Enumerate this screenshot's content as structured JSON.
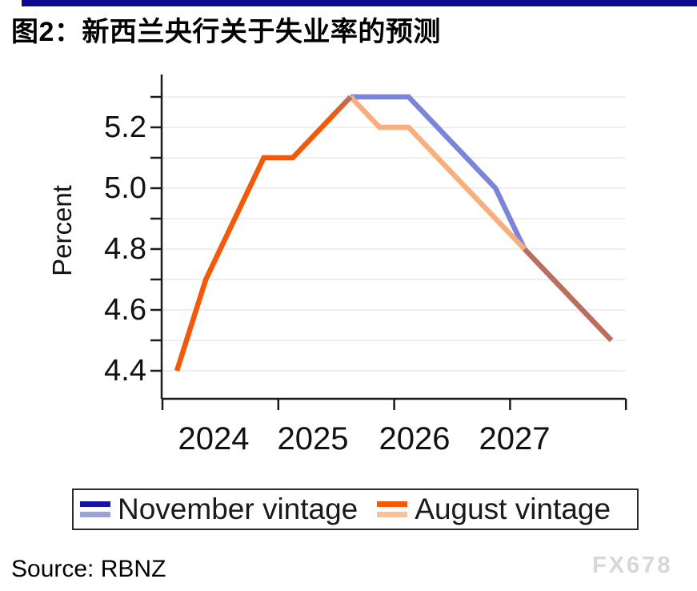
{
  "header": {
    "title": "图2：新西兰央行关于失业率的预测",
    "accent_bar_color": "#0B0B8F"
  },
  "chart_data": {
    "type": "line",
    "title": "图2：新西兰央行关于失业率的预测",
    "xlabel": "",
    "ylabel": "Percent",
    "ylim": [
      4.35,
      5.35
    ],
    "ystep": 0.1,
    "grid": "horizontal",
    "y_tick_labels": [
      "5.2",
      "5.0",
      "4.8",
      "4.6",
      "4.4"
    ],
    "x_year_labels": [
      "2024",
      "2025",
      "2026",
      "2027"
    ],
    "categories": [
      "2024 Q1",
      "2024 Q2",
      "2024 Q3",
      "2024 Q4",
      "2025 Q1",
      "2025 Q2",
      "2025 Q3",
      "2025 Q4",
      "2026 Q1",
      "2026 Q2",
      "2026 Q3",
      "2026 Q4",
      "2027 Q1",
      "2027 Q2",
      "2027 Q3",
      "2027 Q4"
    ],
    "series": [
      {
        "name": "November vintage",
        "values": [
          4.4,
          4.7,
          4.9,
          5.1,
          5.1,
          5.2,
          5.3,
          5.3,
          5.3,
          5.2,
          5.1,
          5.0,
          4.8,
          4.7,
          4.6,
          4.5
        ]
      },
      {
        "name": "August vintage",
        "values": [
          4.4,
          4.7,
          4.9,
          5.1,
          5.1,
          5.2,
          5.3,
          5.2,
          5.2,
          5.1,
          5.0,
          4.9,
          4.8,
          4.7,
          4.6,
          4.5
        ]
      }
    ],
    "segments": [
      {
        "series": 0,
        "from": 6,
        "to": 12,
        "color": "november"
      },
      {
        "series": 1,
        "from": 6,
        "to": 12,
        "color": "august"
      },
      {
        "series": 0,
        "from": 12,
        "to": 15,
        "color": "blend"
      },
      {
        "series": 1,
        "from": 0,
        "to": 5,
        "color": "history"
      },
      {
        "series": 1,
        "from": 5,
        "to": 6,
        "color": "blend_rise"
      }
    ],
    "colors": {
      "history": "#F4590A",
      "november": "#7B84D8",
      "august": "#F9AE7D",
      "blend": "#B96E5E",
      "grid": "#EFEFEF",
      "axis": "#1A1A1A"
    },
    "legend_position": "bottom"
  },
  "legend": {
    "items": [
      {
        "label": "November vintage",
        "swatch_top": "#14149E",
        "swatch_bottom": "#98A2DC"
      },
      {
        "label": "August vintage",
        "swatch_top": "#F25B04",
        "swatch_bottom": "#FAC096"
      }
    ]
  },
  "footer": {
    "source": "Source: RBNZ",
    "watermark": "FX678"
  }
}
